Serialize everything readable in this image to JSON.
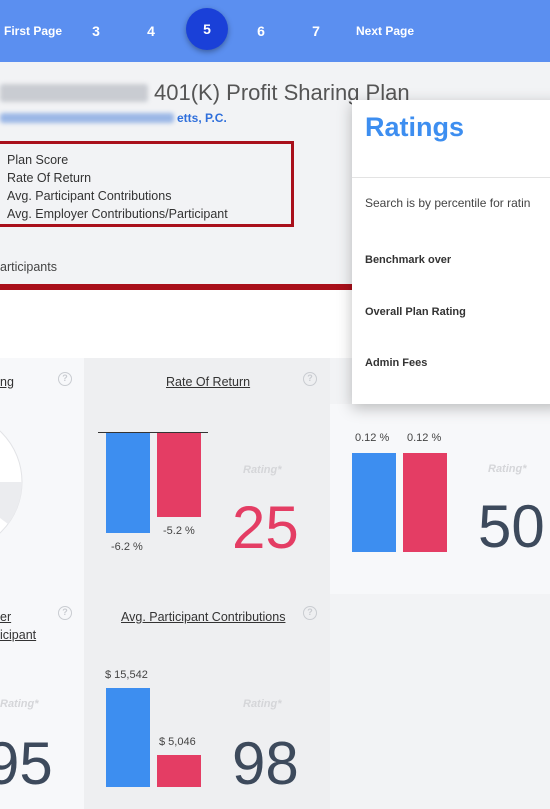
{
  "pagination": {
    "first_label": "First Page",
    "pages": [
      "3",
      "4",
      "5",
      "6",
      "7"
    ],
    "active_page": "5",
    "next_label": "Next Page"
  },
  "plan": {
    "title": "401(K) Profit Sharing Plan",
    "sponsor_suffix": "etts, P.C.",
    "metrics": [
      "Plan Score",
      "Rate Of Return",
      "Avg. Participant Contributions",
      "Avg. Employer Contributions/Participant"
    ],
    "participants_label": "articipants"
  },
  "cards": {
    "left_top_title": "ng",
    "rate_of_return": {
      "title": "Rate Of Return",
      "plan_value": -6.2,
      "plan_label": "-6.2 %",
      "benchmark_value": -5.2,
      "benchmark_label": "-5.2 %",
      "rating_label": "Rating*",
      "rating": "25"
    },
    "right_card": {
      "plan_label": "0.12 %",
      "benchmark_label": "0.12 %",
      "rating_label": "Rating*",
      "rating": "50"
    },
    "left_bottom": {
      "title_line1": "er",
      "title_line2": "icipant",
      "rating_label": "Rating*",
      "rating": "95"
    },
    "avg_participant": {
      "title": "Avg. Participant Contributions",
      "plan_value": 15542,
      "plan_label": "$ 15,542",
      "benchmark_value": 5046,
      "benchmark_label": "$ 5,046",
      "rating_label": "Rating*",
      "rating": "98"
    },
    "colors": {
      "plan": "#3d8ef0",
      "benchmark": "#e43d64",
      "low_rating": "#e43d64",
      "high_rating": "#3d4a5c"
    }
  },
  "ratings_popup": {
    "title": "Ratings",
    "note": "Search is by percentile for ratin",
    "options": [
      "Benchmark over",
      "Overall Plan Rating",
      "Admin Fees"
    ]
  },
  "icons": {
    "help": "question-circle-icon"
  }
}
